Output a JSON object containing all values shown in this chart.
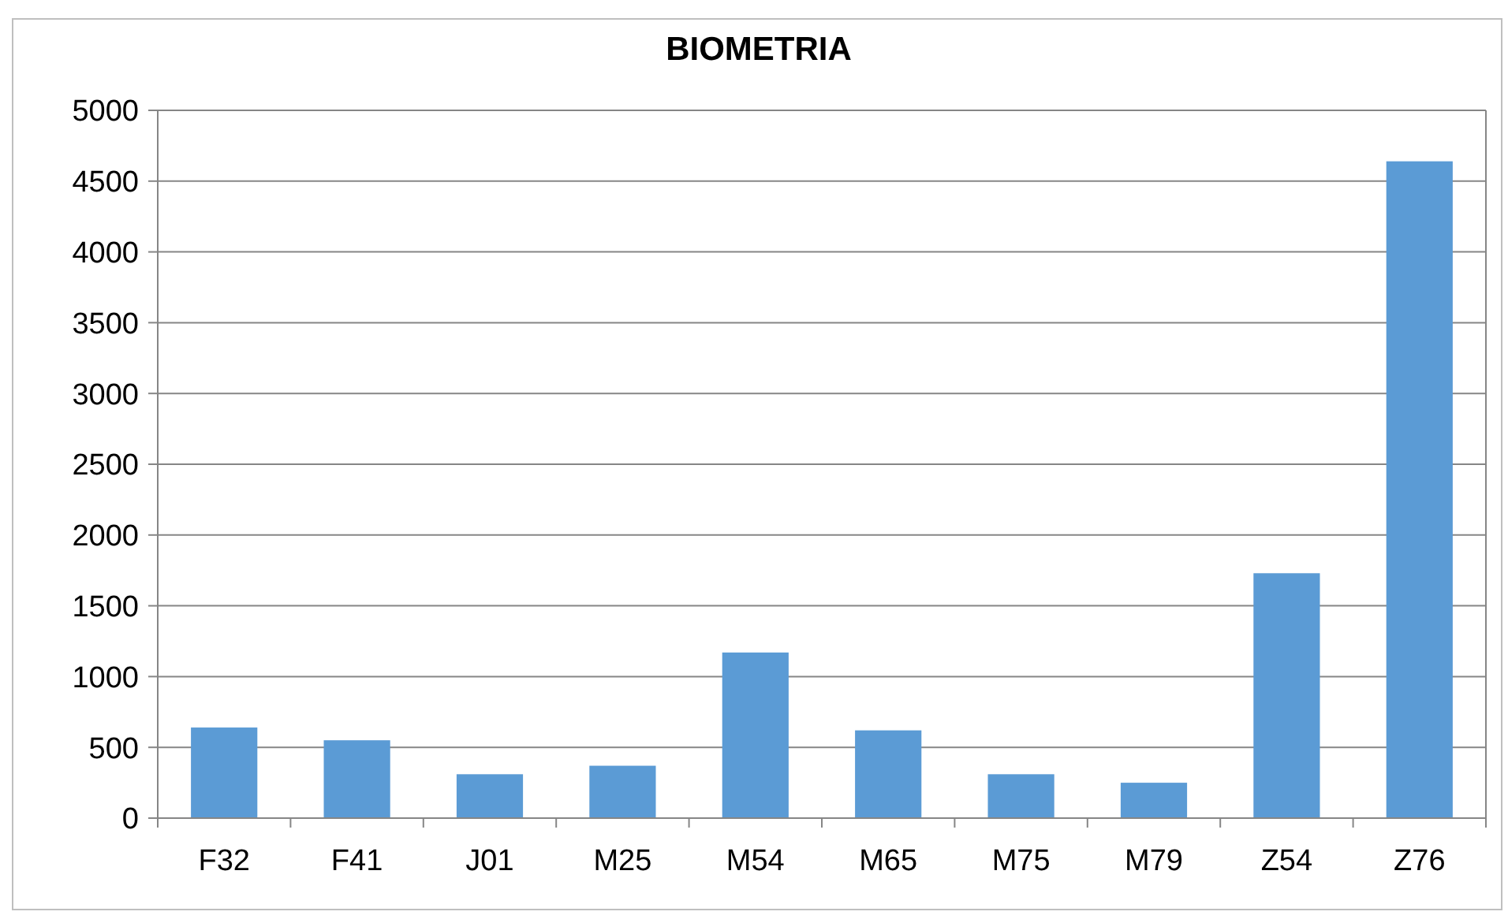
{
  "chart_data": {
    "type": "bar",
    "title": "BIOMETRIA",
    "categories": [
      "F32",
      "F41",
      "J01",
      "M25",
      "M54",
      "M65",
      "M75",
      "M79",
      "Z54",
      "Z76"
    ],
    "values": [
      640,
      550,
      310,
      370,
      1170,
      620,
      310,
      250,
      1730,
      4640
    ],
    "color": "#5b9bd5",
    "ylim": [
      0,
      5000
    ],
    "yticks": [
      0,
      500,
      1000,
      1500,
      2000,
      2500,
      3000,
      3500,
      4000,
      4500,
      5000
    ],
    "grid": "y"
  }
}
